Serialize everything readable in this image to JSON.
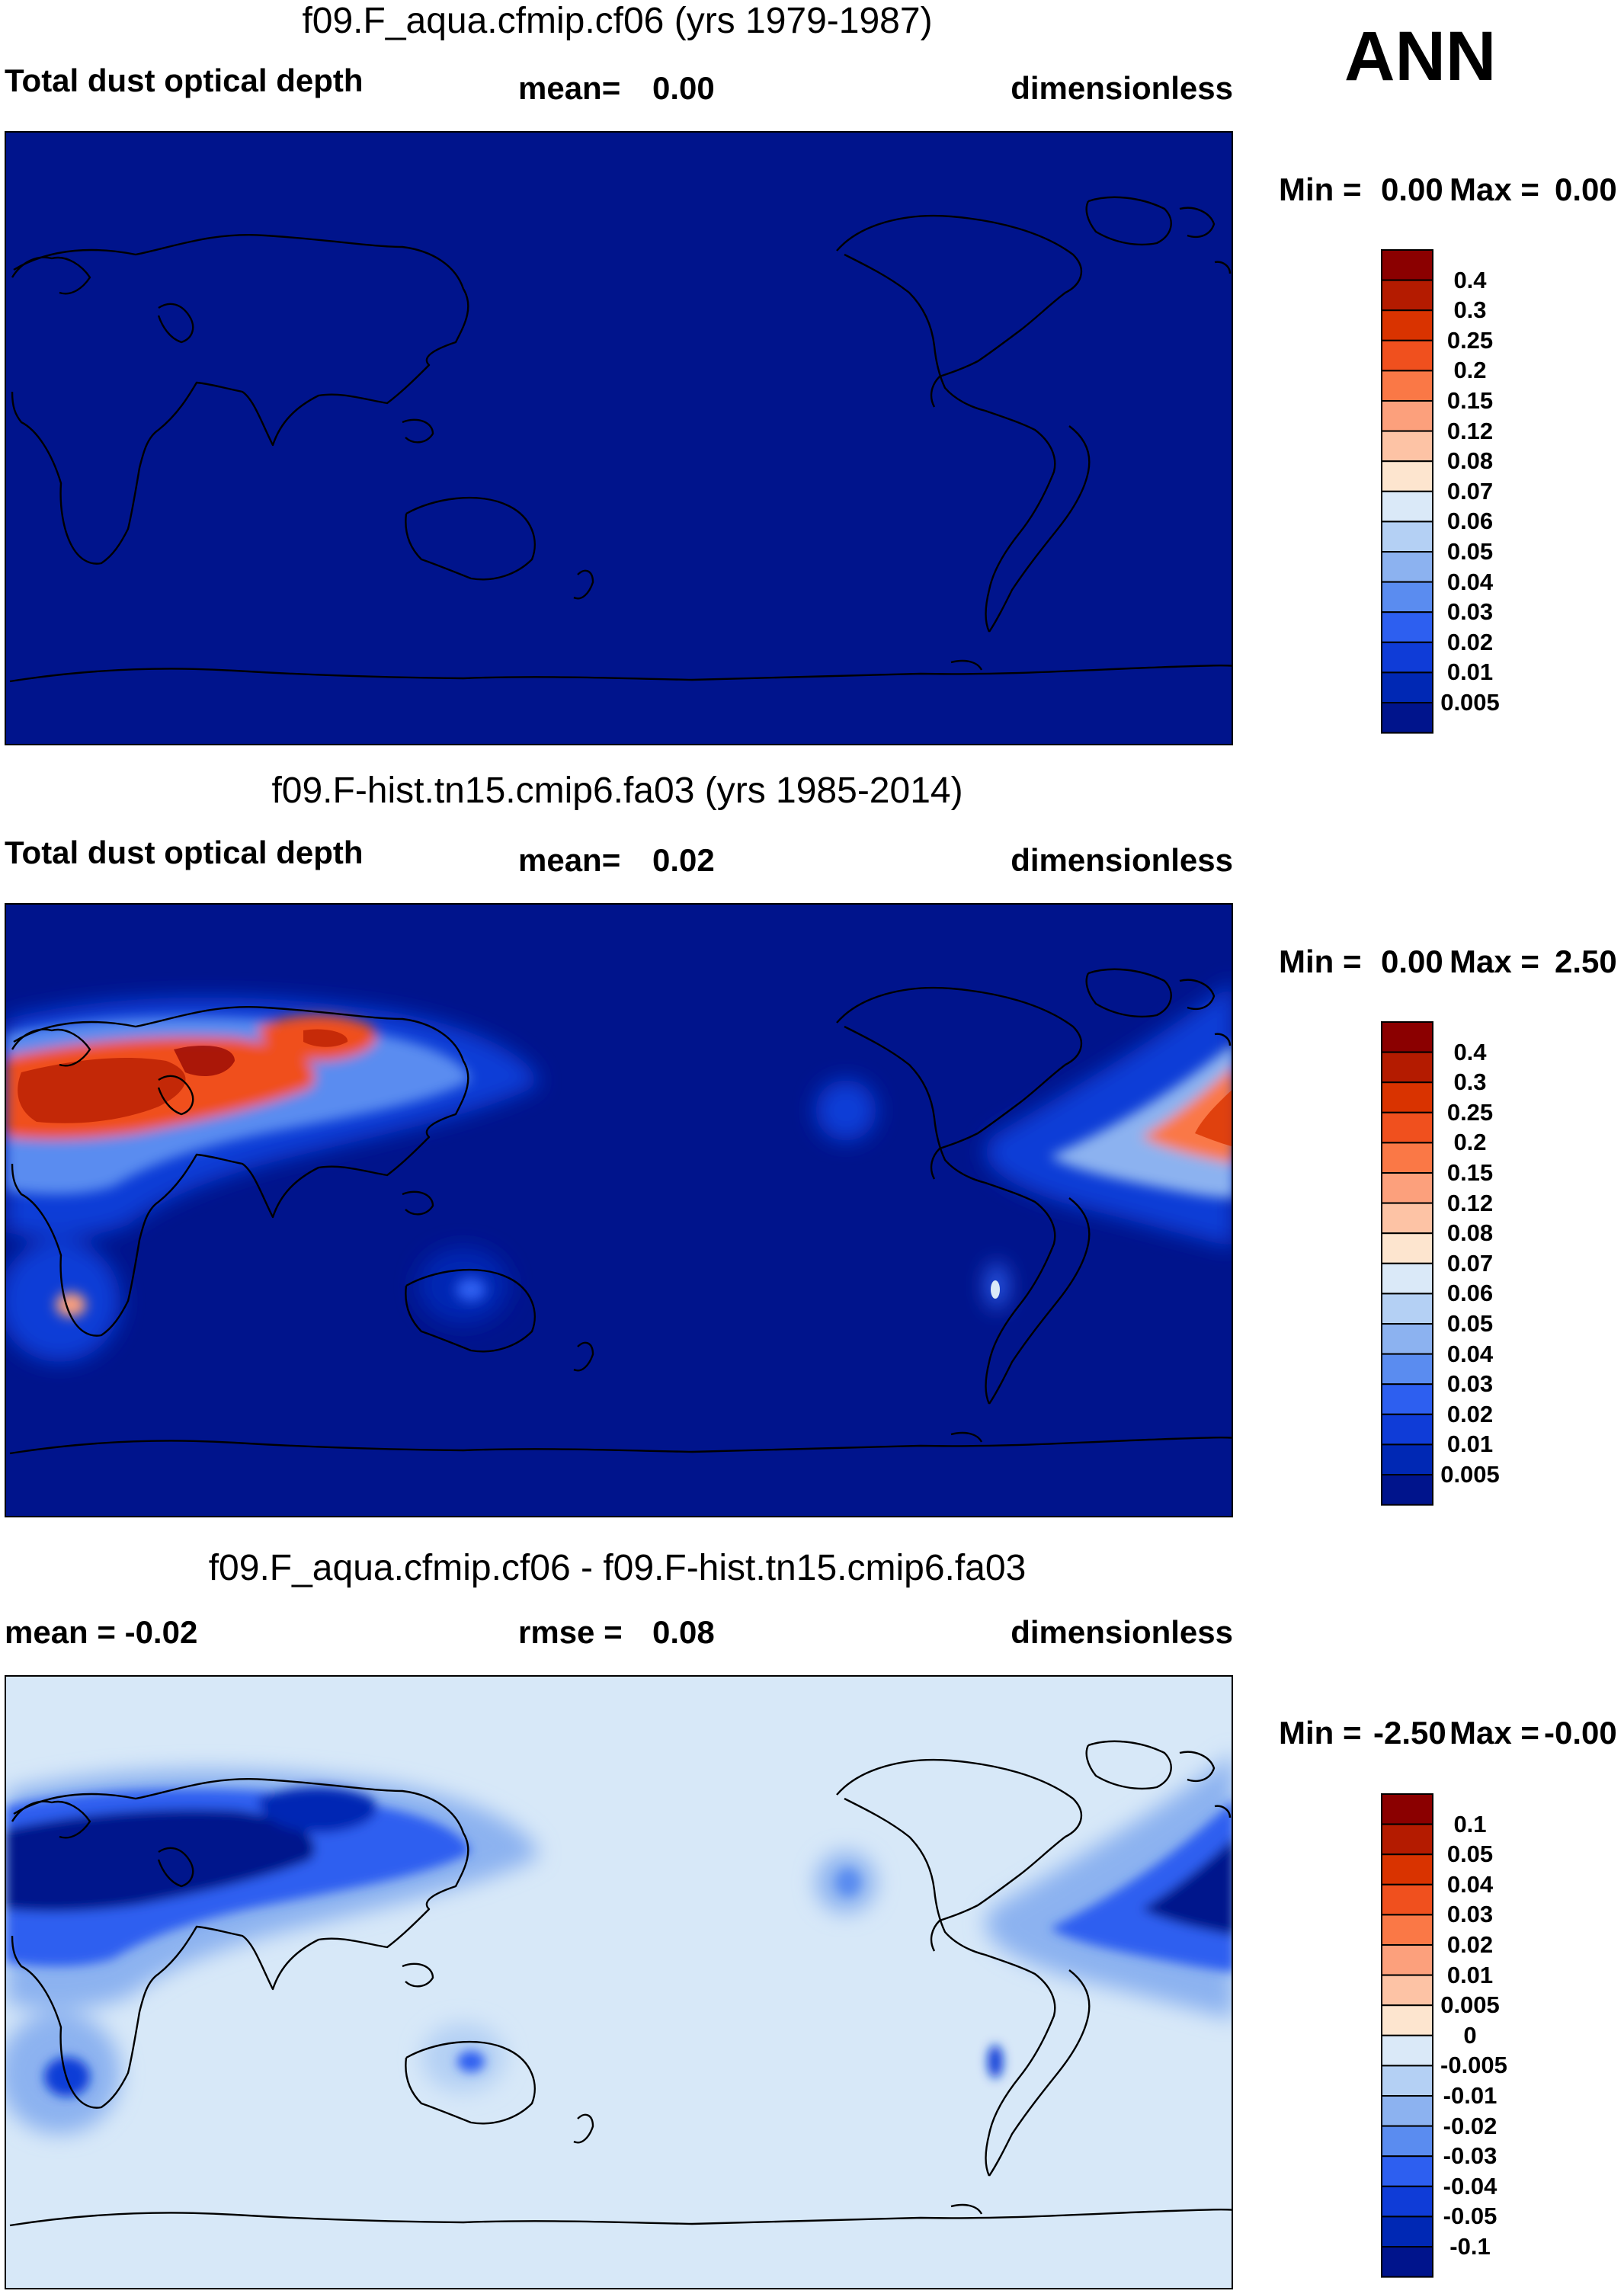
{
  "season": "ANN",
  "panels": [
    {
      "title": "f09.F_aqua.cfmip.cf06 (yrs 1979-1987)",
      "left_label": "Total dust optical depth",
      "mid_key": "mean=",
      "mid_value": "0.00",
      "units": "dimensionless",
      "min_label": "Min =",
      "min_value": "0.00",
      "max_label": "Max =",
      "max_value": "0.00",
      "background": "#00148c"
    },
    {
      "title": "f09.F-hist.tn15.cmip6.fa03 (yrs 1985-2014)",
      "left_label": "Total dust optical depth",
      "mid_key": "mean=",
      "mid_value": "0.02",
      "units": "dimensionless",
      "min_label": "Min =",
      "min_value": "0.00",
      "max_label": "Max =",
      "max_value": "2.50",
      "background": "#00148c"
    },
    {
      "title": "f09.F_aqua.cfmip.cf06 - f09.F-hist.tn15.cmip6.fa03",
      "left_label": "mean =  -0.02",
      "mid_key": "rmse =",
      "mid_value": "0.08",
      "units": "dimensionless",
      "min_label": "Min =",
      "min_value": "-2.50",
      "max_label": "Max =",
      "max_value": "-0.00",
      "background": "#d7e8f8"
    }
  ],
  "colorbars": {
    "abs": {
      "labels": [
        "0.4",
        "0.3",
        "0.25",
        "0.2",
        "0.15",
        "0.12",
        "0.08",
        "0.07",
        "0.06",
        "0.05",
        "0.04",
        "0.03",
        "0.02",
        "0.01",
        "0.005"
      ],
      "colors": [
        "#8b0000",
        "#b41b00",
        "#d93300",
        "#f0501e",
        "#fa7846",
        "#fca07c",
        "#fdc3a5",
        "#fde5cf",
        "#dae9f8",
        "#b4d0f4",
        "#8cb2f0",
        "#5a8cf0",
        "#2d5ff0",
        "#0f3cd7",
        "#0028b4",
        "#00148c"
      ]
    },
    "diff": {
      "labels": [
        "0.1",
        "0.05",
        "0.04",
        "0.03",
        "0.02",
        "0.01",
        "0.005",
        "0",
        "-0.005",
        "-0.01",
        "-0.02",
        "-0.03",
        "-0.04",
        "-0.05",
        "-0.1"
      ],
      "colors": [
        "#8b0000",
        "#b41b00",
        "#d93300",
        "#f0501e",
        "#fa7846",
        "#fca07c",
        "#fdc3a5",
        "#fde5cf",
        "#dae9f8",
        "#b4d0f4",
        "#8cb2f0",
        "#5a8cf0",
        "#2d5ff0",
        "#0f3cd7",
        "#0028b4",
        "#00148c"
      ]
    }
  },
  "chart_data": [
    {
      "type": "heatmap",
      "title": "f09.F_aqua.cfmip.cf06 (yrs 1979-1987)",
      "variable": "Total dust optical depth",
      "units": "dimensionless",
      "mean": 0.0,
      "min": 0.0,
      "max": 0.0,
      "levels": [
        0.005,
        0.01,
        0.02,
        0.03,
        0.04,
        0.05,
        0.06,
        0.07,
        0.08,
        0.12,
        0.15,
        0.2,
        0.25,
        0.3,
        0.4
      ]
    },
    {
      "type": "heatmap",
      "title": "f09.F-hist.tn15.cmip6.fa03 (yrs 1985-2014)",
      "variable": "Total dust optical depth",
      "units": "dimensionless",
      "mean": 0.02,
      "min": 0.0,
      "max": 2.5,
      "levels": [
        0.005,
        0.01,
        0.02,
        0.03,
        0.04,
        0.05,
        0.06,
        0.07,
        0.08,
        0.12,
        0.15,
        0.2,
        0.25,
        0.3,
        0.4
      ]
    },
    {
      "type": "heatmap",
      "title": "f09.F_aqua.cfmip.cf06 - f09.F-hist.tn15.cmip6.fa03",
      "units": "dimensionless",
      "mean": -0.02,
      "rmse": 0.08,
      "min": -2.5,
      "max": -0.0,
      "levels": [
        -0.1,
        -0.05,
        -0.04,
        -0.03,
        -0.02,
        -0.01,
        -0.005,
        0,
        0.005,
        0.01,
        0.02,
        0.03,
        0.04,
        0.05,
        0.1
      ]
    }
  ]
}
